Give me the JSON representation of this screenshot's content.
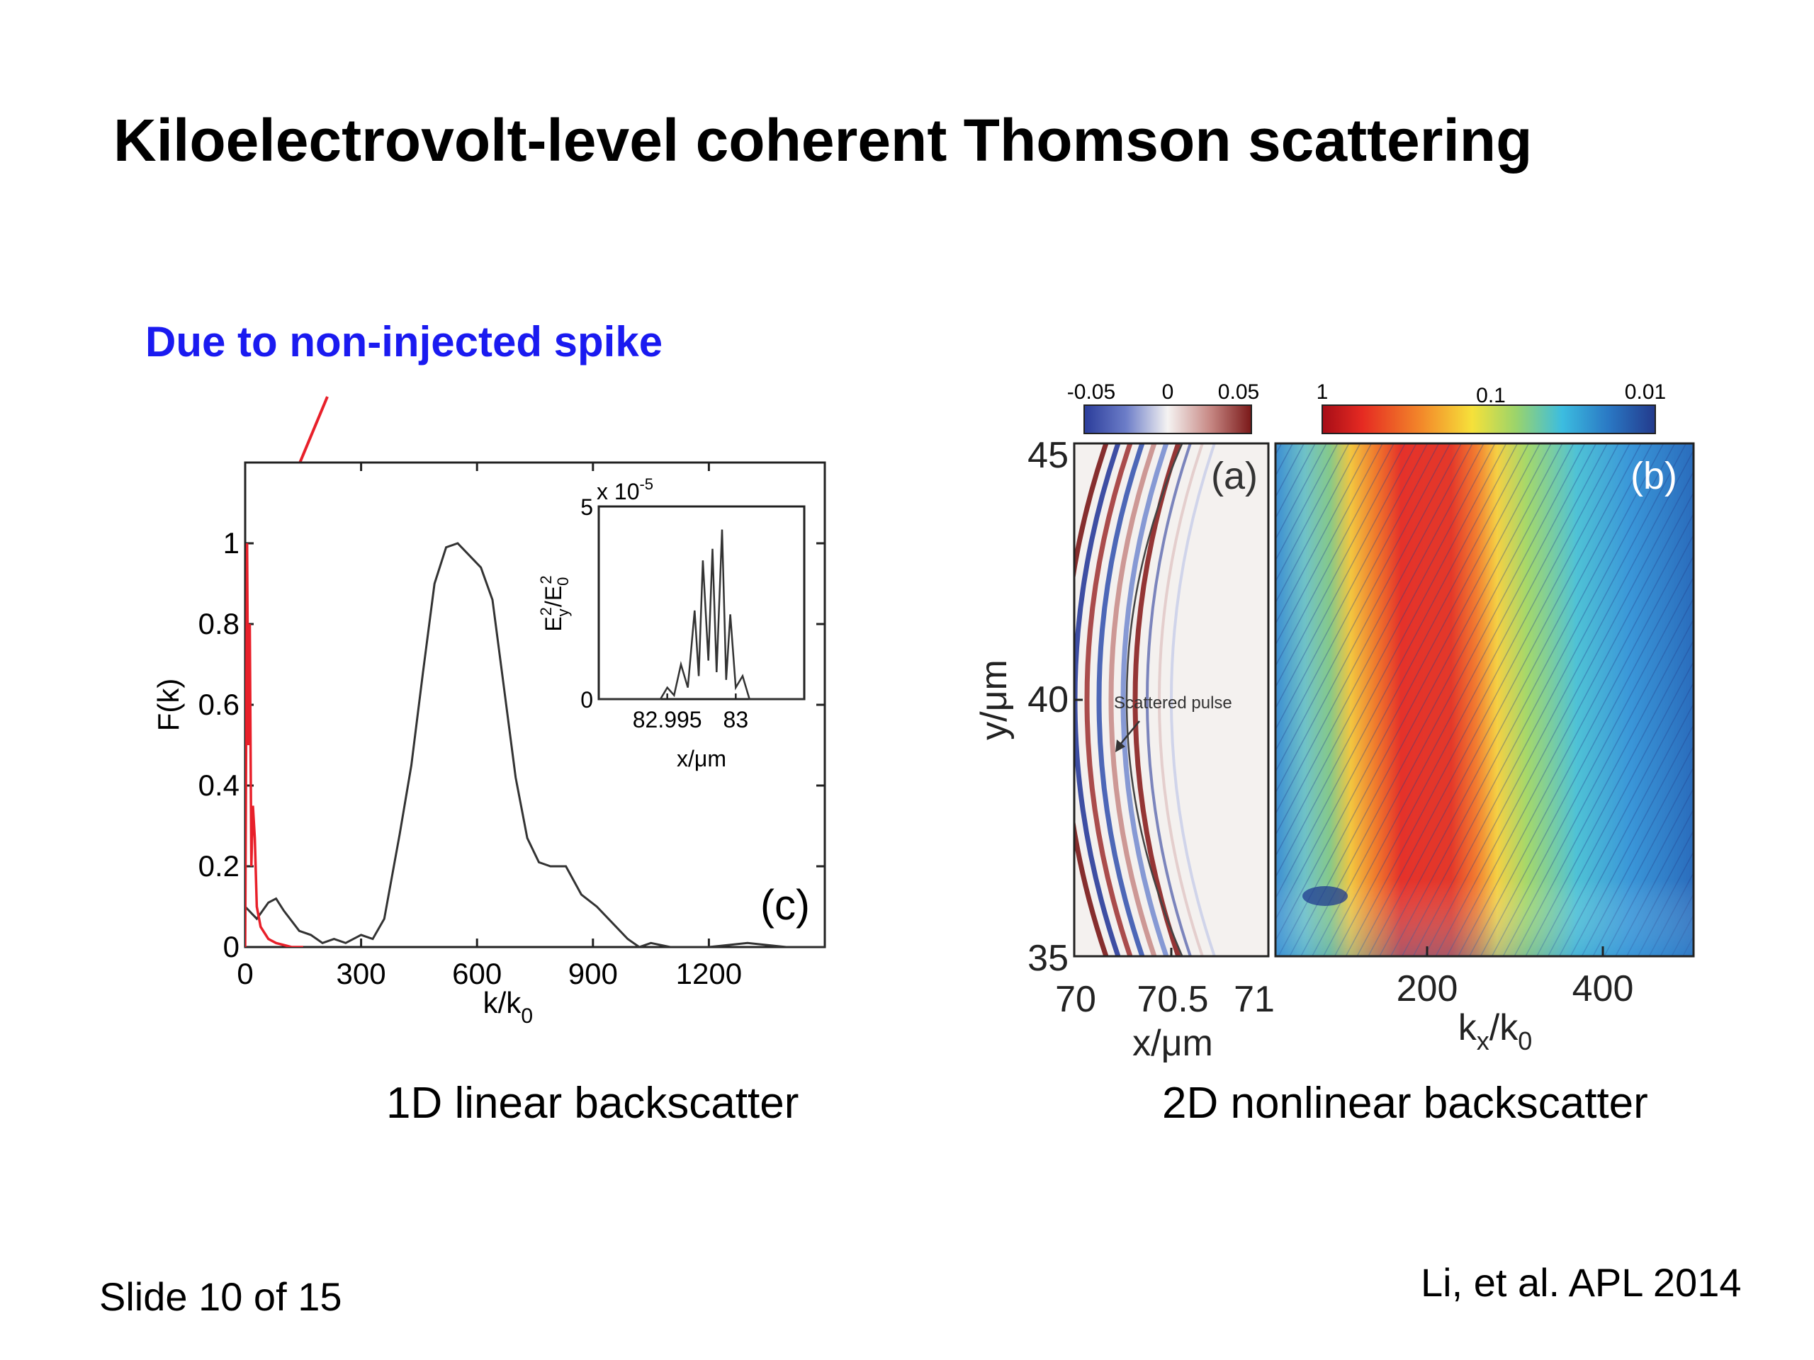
{
  "slide": {
    "title": "Kiloelectrovolt-level coherent Thomson scattering",
    "annotation": "Due to non-injected spike",
    "caption_left": "1D linear backscatter",
    "caption_right": "2D nonlinear backscatter",
    "footer_left": "Slide 10 of 15",
    "footer_right": "Li, et al. APL 2014"
  },
  "colors": {
    "annotation": "#1a1af0",
    "arrow": "#e8202a",
    "spike_line": "#e8202a",
    "spectrum_line": "#333333"
  },
  "chart_data": [
    {
      "type": "line",
      "panel_label": "(c)",
      "xlabel": "k/k",
      "xlabel_sub": "0",
      "ylabel": "F(k)",
      "xlim": [
        0,
        1500
      ],
      "ylim": [
        0,
        1.2
      ],
      "x_ticks": [
        "0",
        "300",
        "600",
        "900",
        "1200"
      ],
      "y_ticks": [
        "0",
        "0.2",
        "0.4",
        "0.6",
        "0.8",
        "1"
      ],
      "grid": false,
      "series": [
        {
          "color": "#333333",
          "x": [
            0,
            30,
            60,
            80,
            100,
            140,
            170,
            200,
            230,
            260,
            300,
            330,
            360,
            400,
            430,
            460,
            490,
            520,
            550,
            580,
            610,
            640,
            670,
            700,
            730,
            760,
            790,
            830,
            870,
            910,
            950,
            990,
            1020,
            1050,
            1100,
            1200,
            1300,
            1400,
            1500
          ],
          "y": [
            0.1,
            0.07,
            0.11,
            0.12,
            0.09,
            0.04,
            0.03,
            0.01,
            0.02,
            0.01,
            0.03,
            0.02,
            0.07,
            0.28,
            0.45,
            0.68,
            0.9,
            0.99,
            1.0,
            0.97,
            0.94,
            0.86,
            0.64,
            0.42,
            0.27,
            0.21,
            0.2,
            0.2,
            0.13,
            0.1,
            0.06,
            0.02,
            0.0,
            0.01,
            0.0,
            0.0,
            0.01,
            0.0,
            0.0
          ]
        },
        {
          "color": "#e8202a",
          "x": [
            0,
            5,
            8,
            12,
            16,
            20,
            25,
            30,
            40,
            60,
            80,
            120,
            150
          ],
          "y": [
            0.0,
            1.0,
            0.5,
            0.8,
            0.2,
            0.35,
            0.27,
            0.1,
            0.05,
            0.02,
            0.01,
            0.0,
            0.0
          ]
        }
      ],
      "inset": {
        "exponent_label": "x 10",
        "exponent_power": "-5",
        "ylabel_parts": [
          "E",
          "y",
          "2",
          "/E",
          "0",
          "2"
        ],
        "xlabel": "x/μm",
        "x_ticks": [
          "82.995",
          "83"
        ],
        "y_ticks": [
          "0",
          "5"
        ],
        "xlim": [
          82.99,
          83.005
        ],
        "ylim": [
          0,
          5
        ],
        "x": [
          82.99,
          82.9945,
          82.995,
          82.9955,
          82.996,
          82.9965,
          82.997,
          82.9973,
          82.9976,
          82.998,
          82.9983,
          82.9986,
          82.999,
          82.9993,
          82.9996,
          83.0,
          83.0005,
          83.001,
          83.005
        ],
        "y": [
          0,
          0,
          0.3,
          0.1,
          0.9,
          0.3,
          2.3,
          0.6,
          3.6,
          1.0,
          3.9,
          0.7,
          4.4,
          0.5,
          2.2,
          0.3,
          0.6,
          0,
          0
        ]
      }
    },
    {
      "type": "heatmap",
      "panel_label": "(a)",
      "colorbar_ticks": [
        "-0.05",
        "0",
        "0.05"
      ],
      "xlabel": "x/μm",
      "ylabel": "y/μm",
      "x_ticks": [
        "70",
        "70.5",
        "71"
      ],
      "y_ticks": [
        "35",
        "40",
        "45"
      ],
      "xlim": [
        70,
        71
      ],
      "ylim": [
        35,
        45
      ],
      "annotation": "Scattered pulse"
    },
    {
      "type": "heatmap",
      "panel_label": "(b)",
      "colorbar_ticks": [
        "1",
        "0.1",
        "0.01"
      ],
      "xlabel": "k",
      "xlabel_sub": "x",
      "xlabel_tail": "/k",
      "xlabel_tail_sub": "0",
      "x_ticks": [
        "200",
        "400"
      ],
      "ylim": [
        35,
        45
      ]
    }
  ]
}
